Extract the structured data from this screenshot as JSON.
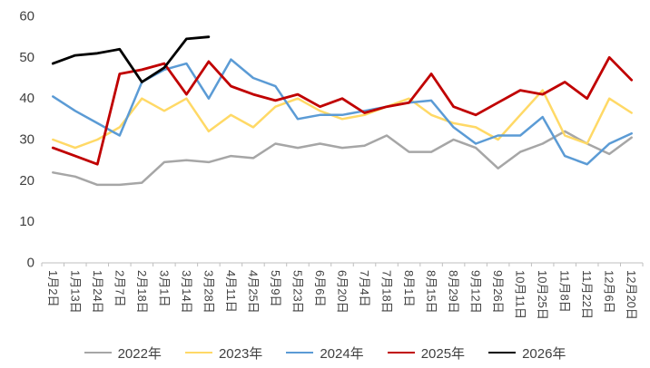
{
  "chart_data": {
    "type": "line",
    "title": "",
    "xlabel": "",
    "ylabel": "",
    "ylim": [
      0,
      60
    ],
    "y_ticks": [
      0,
      10,
      20,
      30,
      40,
      50,
      60
    ],
    "grid": false,
    "legend_position": "bottom",
    "axis_color": "#bfbfbf",
    "text_color": "#404040",
    "categories": [
      "1月2日",
      "1月13日",
      "1月24日",
      "2月7日",
      "2月18日",
      "3月1日",
      "3月14日",
      "3月28日",
      "4月11日",
      "4月25日",
      "5月9日",
      "5月23日",
      "6月6日",
      "6月20日",
      "7月4日",
      "7月18日",
      "8月1日",
      "8月15日",
      "8月29日",
      "9月12日",
      "9月26日",
      "10月11日",
      "10月25日",
      "11月8日",
      "11月22日",
      "12月6日",
      "12月20日"
    ],
    "series": [
      {
        "name": "2022年",
        "color": "#a6a6a6",
        "stroke_width": 2.5,
        "values": [
          22,
          21,
          19,
          19,
          19.5,
          24.5,
          25,
          24.5,
          26,
          25.5,
          29,
          28,
          29,
          28,
          28.5,
          31,
          27,
          27,
          30,
          28,
          23,
          27,
          29,
          32,
          29,
          26.5,
          30.5
        ]
      },
      {
        "name": "2023年",
        "color": "#ffd966",
        "stroke_width": 2.5,
        "values": [
          30,
          28,
          30,
          33,
          40,
          37,
          40,
          32,
          36,
          33,
          38,
          40,
          37,
          35,
          36,
          38,
          40,
          36,
          34,
          33,
          30,
          36,
          42,
          31,
          29,
          40,
          36.5
        ]
      },
      {
        "name": "2024年",
        "color": "#5b9bd5",
        "stroke_width": 2.5,
        "values": [
          40.5,
          37,
          34,
          31,
          44,
          47,
          48.5,
          40,
          49.5,
          45,
          43,
          35,
          36,
          36,
          37,
          38,
          39,
          39.5,
          33,
          29,
          31,
          31,
          35.5,
          26,
          24,
          29,
          31.5
        ]
      },
      {
        "name": "2025年",
        "color": "#c00000",
        "stroke_width": 2.8,
        "values": [
          28,
          26,
          24,
          46,
          47,
          48.5,
          41,
          49,
          43,
          41,
          39.5,
          41,
          38,
          40,
          36.5,
          38,
          39,
          46,
          38,
          36,
          39,
          42,
          41,
          44,
          40,
          50,
          44.5
        ]
      },
      {
        "name": "2026年",
        "color": "#000000",
        "stroke_width": 2.8,
        "values": [
          48.5,
          50.5,
          51,
          52,
          44,
          47.5,
          54.5,
          55,
          null,
          null,
          null,
          null,
          null,
          null,
          null,
          null,
          null,
          null,
          null,
          null,
          null,
          null,
          null,
          null,
          null,
          null,
          null
        ]
      }
    ]
  }
}
